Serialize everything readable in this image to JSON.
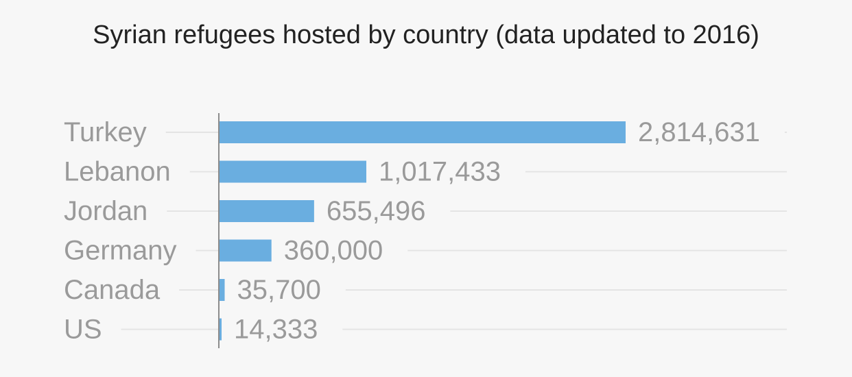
{
  "chart_data": {
    "type": "bar",
    "orientation": "horizontal",
    "title": "Syrian refugees hosted by country (data updated to 2016)",
    "xlabel": "",
    "ylabel": "",
    "categories": [
      "Turkey",
      "Lebanon",
      "Jordan",
      "Germany",
      "Canada",
      "US"
    ],
    "values": [
      2814631,
      1017433,
      655496,
      360000,
      35700,
      14333
    ],
    "value_labels": [
      "2,814,631",
      "1,017,433",
      "655,496",
      "360,000",
      "35,700",
      "14,333"
    ],
    "xlim": [
      0,
      2814631
    ],
    "grid": true,
    "legend": "none"
  },
  "colors": {
    "bar": "#6aaee0",
    "axis": "#8c8c8c",
    "grid": "#e4e4e4",
    "background": "#f7f7f7"
  }
}
